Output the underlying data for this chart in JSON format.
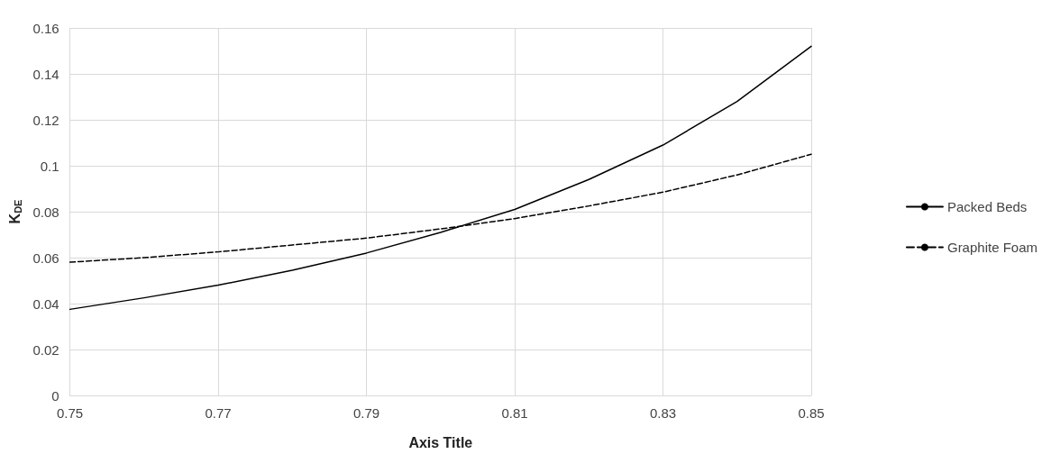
{
  "chart_data": {
    "type": "line",
    "xlabel": "Axis Title",
    "ylabel": "K$_{DE}$",
    "xlim": [
      0.75,
      0.85
    ],
    "xticks": [
      0.75,
      0.77,
      0.79,
      0.81,
      0.83,
      0.85
    ],
    "ylim": [
      0,
      0.16
    ],
    "yticks": [
      0,
      0.02,
      0.04,
      0.06,
      0.08,
      0.1,
      0.12,
      0.14,
      0.16
    ],
    "grid": true,
    "legend": "right",
    "marker": "none",
    "x": [
      0.75,
      0.76,
      0.77,
      0.78,
      0.79,
      0.8,
      0.81,
      0.82,
      0.83,
      0.84,
      0.85
    ],
    "series": [
      {
        "name": "Packed Beds",
        "color": "#000000",
        "line_style": "solid",
        "values": [
          0.0375,
          0.0425,
          0.048,
          0.0545,
          0.062,
          0.071,
          0.081,
          0.094,
          0.109,
          0.128,
          0.152
        ]
      },
      {
        "name": "Graphite Foam",
        "color": "#000000",
        "line_style": "dashed",
        "values": [
          0.058,
          0.06,
          0.0625,
          0.0655,
          0.0685,
          0.0725,
          0.077,
          0.0825,
          0.0885,
          0.096,
          0.105
        ]
      }
    ]
  }
}
